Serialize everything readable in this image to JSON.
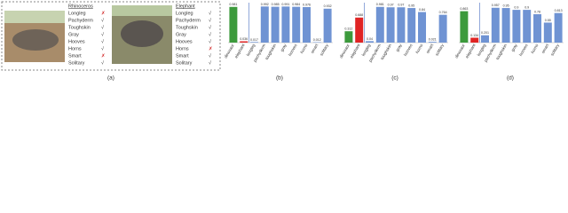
{
  "panel_a": {
    "left": {
      "name": "Rhinoceros",
      "attributes": [
        "Longleg",
        "Pachyderm",
        "Toughskin",
        "Gray",
        "Hooves",
        "Horns",
        "Smart",
        "Solitary"
      ],
      "marks": [
        "✗",
        "√",
        "√",
        "√",
        "√",
        "√",
        "✗",
        "√"
      ]
    },
    "right": {
      "name": "Elephant",
      "attributes": [
        "Longleg",
        "Pachyderm",
        "Toughskin",
        "Gray",
        "Hooves",
        "Horns",
        "Smart",
        "Solitary"
      ],
      "marks": [
        "√",
        "√",
        "√",
        "√",
        "√",
        "✗",
        "√",
        "√"
      ]
    }
  },
  "captions": [
    "(a)",
    "(b)",
    "(c)",
    "(d)"
  ],
  "chart_data": [
    {
      "type": "bar",
      "categories": [
        "dinosaur",
        "elephant",
        "longleg",
        "pachyderm",
        "toughskin",
        "gray",
        "hooves",
        "horns",
        "smart",
        "solitary"
      ],
      "values": [
        0.981,
        0.036,
        0.017,
        0.992,
        0.985,
        0.991,
        0.984,
        0.976,
        0.012,
        0.932
      ],
      "colors": [
        "#3c9a3c",
        "#e02424",
        "#6f93d3",
        "#6f93d3",
        "#6f93d3",
        "#6f93d3",
        "#6f93d3",
        "#6f93d3",
        "#6f93d3",
        "#6f93d3"
      ],
      "ylim": [
        0,
        1
      ]
    },
    {
      "type": "bar",
      "categories": [
        "dinosaur",
        "elephant",
        "longleg",
        "pachyderm",
        "toughskin",
        "gray",
        "hooves",
        "horns",
        "smart",
        "solitary"
      ],
      "values": [
        0.312,
        0.688,
        0.04,
        0.981,
        0.97,
        0.97,
        0.95,
        0.84,
        0.021,
        0.764
      ],
      "colors": [
        "#3c9a3c",
        "#e02424",
        "#6f93d3",
        "#6f93d3",
        "#6f93d3",
        "#6f93d3",
        "#6f93d3",
        "#6f93d3",
        "#6f93d3",
        "#6f93d3"
      ],
      "ylim": [
        0,
        1
      ]
    },
    {
      "type": "bar",
      "categories": [
        "dinosaur",
        "elephant",
        "longleg",
        "pachyderm",
        "toughskin",
        "gray",
        "hooves",
        "horns",
        "smart",
        "solitary"
      ],
      "values": [
        0.863,
        0.134,
        0.201,
        0.957,
        0.95,
        0.9,
        0.9,
        0.78,
        0.55,
        0.813
      ],
      "colors": [
        "#3c9a3c",
        "#e02424",
        "#6f93d3",
        "#6f93d3",
        "#6f93d3",
        "#6f93d3",
        "#6f93d3",
        "#6f93d3",
        "#6f93d3",
        "#6f93d3"
      ],
      "ylim": [
        0,
        1
      ]
    }
  ]
}
